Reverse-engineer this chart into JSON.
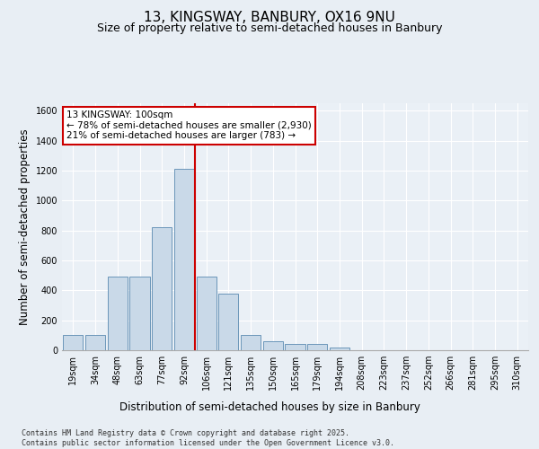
{
  "title1": "13, KINGSWAY, BANBURY, OX16 9NU",
  "title2": "Size of property relative to semi-detached houses in Banbury",
  "xlabel": "Distribution of semi-detached houses by size in Banbury",
  "ylabel": "Number of semi-detached properties",
  "annotation_line1": "13 KINGSWAY: 100sqm",
  "annotation_line2": "← 78% of semi-detached houses are smaller (2,930)",
  "annotation_line3": "21% of semi-detached houses are larger (783) →",
  "categories": [
    "19sqm",
    "34sqm",
    "48sqm",
    "63sqm",
    "77sqm",
    "92sqm",
    "106sqm",
    "121sqm",
    "135sqm",
    "150sqm",
    "165sqm",
    "179sqm",
    "194sqm",
    "208sqm",
    "223sqm",
    "237sqm",
    "252sqm",
    "266sqm",
    "281sqm",
    "295sqm",
    "310sqm"
  ],
  "values": [
    100,
    100,
    490,
    490,
    820,
    1210,
    490,
    380,
    100,
    60,
    40,
    40,
    20,
    0,
    0,
    0,
    0,
    0,
    0,
    0,
    0
  ],
  "bar_color": "#c9d9e8",
  "bar_edge_color": "#5a8ab0",
  "vline_x": 5.5,
  "vline_color": "#cc0000",
  "annotation_box_color": "#cc0000",
  "ylim": [
    0,
    1650
  ],
  "yticks": [
    0,
    200,
    400,
    600,
    800,
    1000,
    1200,
    1400,
    1600
  ],
  "background_color": "#e8eef4",
  "plot_bg_color": "#eaf0f6",
  "footer": "Contains HM Land Registry data © Crown copyright and database right 2025.\nContains public sector information licensed under the Open Government Licence v3.0.",
  "title_fontsize": 11,
  "subtitle_fontsize": 9,
  "tick_fontsize": 7,
  "label_fontsize": 8.5
}
